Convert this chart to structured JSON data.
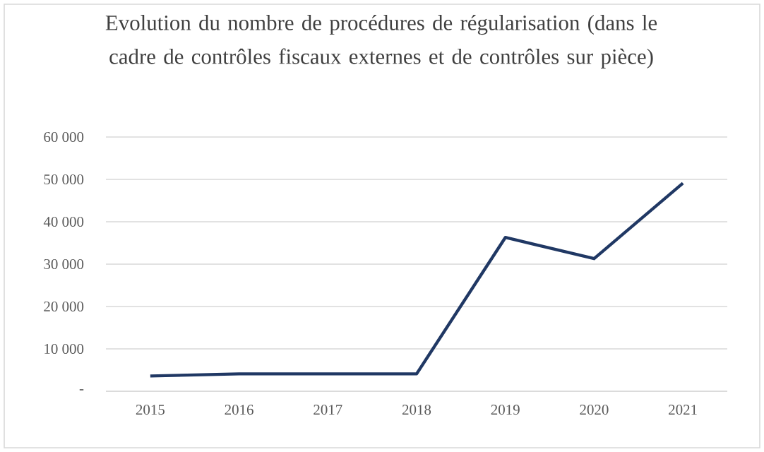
{
  "chart_data": {
    "type": "line",
    "title": "Evolution du nombre de procédures de régularisation (dans le cadre de contrôles fiscaux externes et de contrôles sur pièce)",
    "categories": [
      "2015",
      "2016",
      "2017",
      "2018",
      "2019",
      "2020",
      "2021"
    ],
    "series": [
      {
        "color": "#203864",
        "values": [
          3600,
          4100,
          4100,
          4100,
          36300,
          31300,
          49100
        ]
      }
    ],
    "ylim": [
      0,
      60000
    ],
    "yticks": [
      {
        "value": 0,
        "label": "-"
      },
      {
        "value": 10000,
        "label": "10 000"
      },
      {
        "value": 20000,
        "label": "20 000"
      },
      {
        "value": 30000,
        "label": "30 000"
      },
      {
        "value": 40000,
        "label": "40 000"
      },
      {
        "value": 50000,
        "label": "50 000"
      },
      {
        "value": 60000,
        "label": "60 000"
      }
    ],
    "grid": "y",
    "marker": "none",
    "line_style": "solid"
  }
}
